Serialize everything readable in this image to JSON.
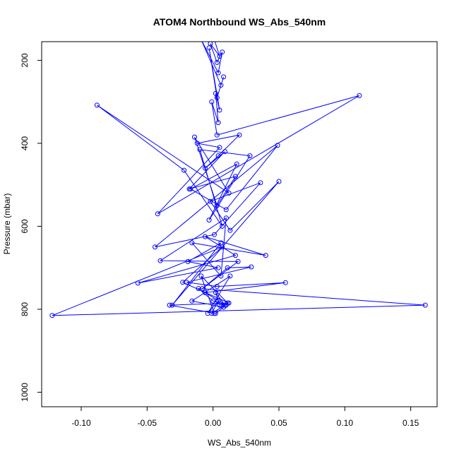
{
  "chart_data": {
    "type": "line",
    "title": "ATOM4 Northbound WS_Abs_540nm",
    "xlabel": "WS_Abs_540nm",
    "ylabel": "Pressure (mbar)",
    "xlim": [
      -0.13,
      0.17
    ],
    "ylim": [
      1035,
      155
    ],
    "y_reversed": true,
    "xticks": [
      -0.1,
      -0.05,
      0.0,
      0.05,
      0.1,
      0.15
    ],
    "xtick_labels": [
      "-0.10",
      "-0.05",
      "0.00",
      "0.05",
      "0.10",
      "0.15"
    ],
    "yticks": [
      200,
      400,
      600,
      800,
      1000
    ],
    "ytick_labels": [
      "200",
      "400",
      "600",
      "800",
      "1000"
    ],
    "grid": false,
    "series_color": "#0000ff",
    "series": [
      {
        "x": [
          0.001,
          0.005,
          -0.002,
          0.003,
          0.007,
          0.004,
          -0.009,
          0.006,
          0.008,
          0.003,
          -0.003,
          0.005,
          0.002,
          0.004,
          -0.001,
          0.003,
          0.111,
          -0.042,
          0.005,
          -0.012,
          0.02,
          0.004,
          -0.006,
          0.009,
          -0.018,
          0.017,
          0.003,
          -0.014,
          0.012,
          -0.088,
          -0.022,
          0.007,
          -0.01,
          0.028,
          -0.003,
          0.018,
          -0.017,
          0.01,
          0.049,
          -0.044,
          0.001,
          0.036,
          -0.002,
          0.013,
          0.05,
          -0.031,
          0.006,
          -0.019,
          0.004,
          -0.057,
          0.017,
          -0.006,
          0.04,
          -0.016,
          0.006,
          0.01,
          -0.04,
          0.019,
          -0.008,
          0.011,
          0.029,
          -0.02,
          0.003,
          0.055,
          -0.006,
          0.01,
          0.0,
          -0.011,
          0.161,
          -0.122,
          0.007,
          -0.023,
          0.012,
          -0.033,
          0.002,
          0.008,
          -0.016,
          0.013,
          -0.004,
          0.004,
          -0.001,
          0.009,
          0.002,
          0.005,
          0.011,
          -0.009,
          0.001
        ],
        "y": [
          150,
          190,
          160,
          205,
          180,
          230,
          150,
          260,
          240,
          290,
          170,
          320,
          280,
          350,
          300,
          380,
          285,
          570,
          410,
          400,
          380,
          430,
          460,
          420,
          510,
          480,
          550,
          385,
          520,
          308,
          465,
          600,
          415,
          430,
          585,
          450,
          510,
          560,
          405,
          650,
          620,
          495,
          540,
          610,
          492,
          790,
          640,
          685,
          700,
          737,
          670,
          625,
          670,
          640,
          720,
          580,
          683,
          685,
          750,
          700,
          698,
          735,
          745,
          736,
          760,
          790,
          780,
          750,
          790,
          815,
          650,
          735,
          785,
          790,
          810,
          795,
          780,
          720,
          810,
          780,
          810,
          790,
          760,
          790,
          785,
          720,
          810
        ]
      }
    ]
  }
}
